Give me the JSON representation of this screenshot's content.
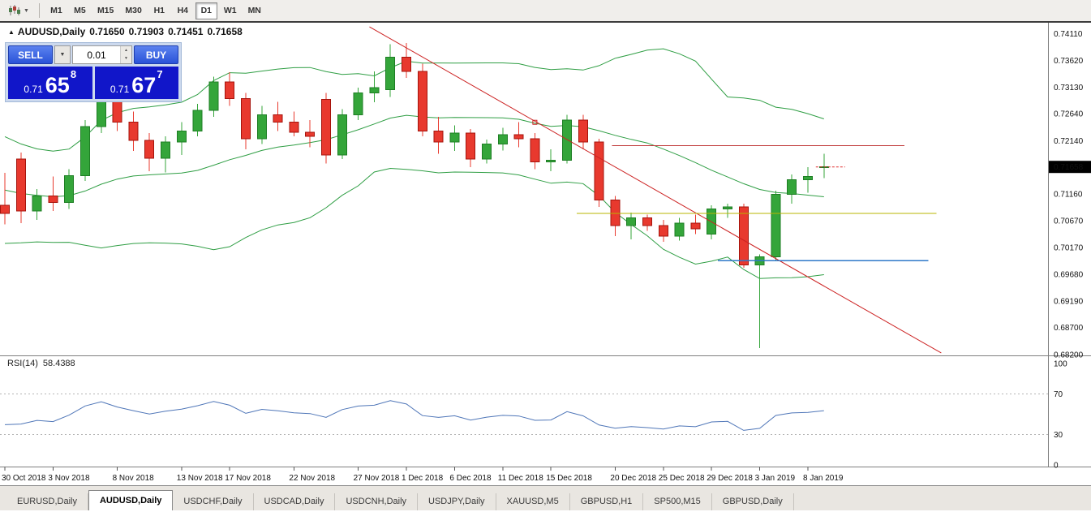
{
  "toolbar": {
    "caret_icon": "▼",
    "timeframes": [
      "M1",
      "M5",
      "M15",
      "M30",
      "H1",
      "H4",
      "D1",
      "W1",
      "MN"
    ],
    "active_timeframe": "D1"
  },
  "chart": {
    "title": {
      "marker": "▲",
      "symbol": "AUDUSD,Daily",
      "open": "0.71650",
      "high": "0.71903",
      "low": "0.71451",
      "close": "0.71658"
    },
    "trade_panel": {
      "sell_label": "SELL",
      "buy_label": "BUY",
      "volume": "0.01",
      "dropdown_icon": "▼",
      "spin_up_icon": "▲",
      "spin_down_icon": "▼",
      "sell_price": {
        "prefix": "0.71",
        "big": "65",
        "sup": "8"
      },
      "buy_price": {
        "prefix": "0.71",
        "big": "67",
        "sup": "7"
      }
    },
    "price_axis_ticks": [
      "0.74110",
      "0.73620",
      "0.73130",
      "0.72640",
      "0.72140",
      "0.71160",
      "0.70670",
      "0.70170",
      "0.69680",
      "0.69190",
      "0.68700",
      "0.68200"
    ],
    "current_price_badge": "0.71658",
    "time_labels": [
      {
        "text": "30 Oct 2018",
        "i": 0
      },
      {
        "text": "3 Nov 2018",
        "i": 3
      },
      {
        "text": "8 Nov 2018",
        "i": 7
      },
      {
        "text": "13 Nov 2018",
        "i": 11
      },
      {
        "text": "17 Nov 2018",
        "i": 14
      },
      {
        "text": "22 Nov 2018",
        "i": 18
      },
      {
        "text": "27 Nov 2018",
        "i": 22
      },
      {
        "text": "1 Dec 2018",
        "i": 25
      },
      {
        "text": "6 Dec 2018",
        "i": 28
      },
      {
        "text": "11 Dec 2018",
        "i": 31
      },
      {
        "text": "15 Dec 2018",
        "i": 34
      },
      {
        "text": "20 Dec 2018",
        "i": 38
      },
      {
        "text": "25 Dec 2018",
        "i": 41
      },
      {
        "text": "29 Dec 2018",
        "i": 44
      },
      {
        "text": "3 Jan 2019",
        "i": 47
      },
      {
        "text": "8 Jan 2019",
        "i": 50
      }
    ]
  },
  "chart_data": {
    "type": "candlestick",
    "symbol": "AUDUSD",
    "period": "Daily",
    "price_view_range": [
      0.682,
      0.743
    ],
    "candles": [
      [
        0.7095,
        0.7155,
        0.706,
        0.708
      ],
      [
        0.718,
        0.7192,
        0.7062,
        0.7085
      ],
      [
        0.7085,
        0.7125,
        0.7068,
        0.7112
      ],
      [
        0.7112,
        0.7148,
        0.7085,
        0.71
      ],
      [
        0.71,
        0.7162,
        0.7088,
        0.715
      ],
      [
        0.715,
        0.7252,
        0.714,
        0.724
      ],
      [
        0.724,
        0.7305,
        0.7228,
        0.7292
      ],
      [
        0.7292,
        0.7312,
        0.7232,
        0.7248
      ],
      [
        0.7248,
        0.7268,
        0.7195,
        0.7215
      ],
      [
        0.7215,
        0.7228,
        0.7158,
        0.7182
      ],
      [
        0.7182,
        0.7222,
        0.7156,
        0.7212
      ],
      [
        0.7212,
        0.7248,
        0.7188,
        0.7232
      ],
      [
        0.7232,
        0.7282,
        0.7222,
        0.727
      ],
      [
        0.727,
        0.7332,
        0.7258,
        0.7322
      ],
      [
        0.7322,
        0.734,
        0.7278,
        0.7292
      ],
      [
        0.7292,
        0.7302,
        0.7198,
        0.7218
      ],
      [
        0.7218,
        0.7278,
        0.7208,
        0.7262
      ],
      [
        0.7262,
        0.7286,
        0.7232,
        0.7248
      ],
      [
        0.7248,
        0.7268,
        0.7222,
        0.723
      ],
      [
        0.723,
        0.7252,
        0.7202,
        0.7222
      ],
      [
        0.729,
        0.7302,
        0.7172,
        0.7188
      ],
      [
        0.7188,
        0.7272,
        0.718,
        0.7262
      ],
      [
        0.7262,
        0.7312,
        0.7252,
        0.7302
      ],
      [
        0.7302,
        0.7342,
        0.7285,
        0.7312
      ],
      [
        0.7308,
        0.7392,
        0.7295,
        0.7368
      ],
      [
        0.7368,
        0.7394,
        0.733,
        0.7342
      ],
      [
        0.7342,
        0.7356,
        0.7222,
        0.7232
      ],
      [
        0.7232,
        0.7258,
        0.719,
        0.7212
      ],
      [
        0.7212,
        0.7242,
        0.7195,
        0.7228
      ],
      [
        0.7228,
        0.7236,
        0.7165,
        0.718
      ],
      [
        0.718,
        0.7216,
        0.7172,
        0.7208
      ],
      [
        0.7208,
        0.7238,
        0.7196,
        0.7225
      ],
      [
        0.7225,
        0.7248,
        0.7202,
        0.7218
      ],
      [
        0.7218,
        0.7228,
        0.7162,
        0.7175
      ],
      [
        0.7175,
        0.7198,
        0.7158,
        0.7178
      ],
      [
        0.7178,
        0.7262,
        0.7172,
        0.7252
      ],
      [
        0.7252,
        0.7262,
        0.7198,
        0.7212
      ],
      [
        0.7212,
        0.7218,
        0.7092,
        0.7105
      ],
      [
        0.7105,
        0.7112,
        0.7038,
        0.7058
      ],
      [
        0.7058,
        0.7082,
        0.7032,
        0.7072
      ],
      [
        0.7072,
        0.7078,
        0.7048,
        0.7058
      ],
      [
        0.7058,
        0.7068,
        0.7028,
        0.7038
      ],
      [
        0.7038,
        0.7072,
        0.703,
        0.7062
      ],
      [
        0.7062,
        0.7078,
        0.7042,
        0.7052
      ],
      [
        0.7042,
        0.7095,
        0.7032,
        0.7088
      ],
      [
        0.7088,
        0.7098,
        0.7072,
        0.7092
      ],
      [
        0.7092,
        0.7098,
        0.698,
        0.6985
      ],
      [
        0.6985,
        0.7005,
        0.6832,
        0.7
      ],
      [
        0.7,
        0.7122,
        0.6992,
        0.7115
      ],
      [
        0.7115,
        0.7152,
        0.7098,
        0.7142
      ],
      [
        0.7142,
        0.7165,
        0.7118,
        0.7148
      ],
      [
        0.7165,
        0.71903,
        0.71451,
        0.71658
      ]
    ],
    "indicators": {
      "bollinger": {
        "period": 20,
        "deviation": 2,
        "color": "#2f9e44"
      },
      "rsi": {
        "period": 14,
        "value": 58.4388,
        "color": "#4f76b8"
      }
    },
    "objects": {
      "trendline": {
        "i1": 22.7,
        "p1": 0.7424,
        "i2": 58.3,
        "p2": 0.6823,
        "color": "#cc2222"
      },
      "trendline_handle": {
        "i": 33.0,
        "p": 0.7248
      },
      "hlines": [
        {
          "name": "resistance-line-red",
          "price": 0.7205,
          "i1": 37.8,
          "i2": 56.0,
          "color": "#c03a3a"
        },
        {
          "name": "support-line-olive",
          "price": 0.708,
          "i1": 35.6,
          "i2": 58.0,
          "color": "#b8b400"
        },
        {
          "name": "support-line-blue",
          "price": 0.6993,
          "i1": 44.4,
          "i2": 57.5,
          "color": "#2e78c8"
        }
      ]
    },
    "colors": {
      "up": "#34a53a",
      "down": "#e8392e"
    }
  },
  "rsi_panel": {
    "label": "RSI(14)",
    "value": "58.4388",
    "ticks": [
      "100",
      "70",
      "30",
      "0"
    ],
    "levels": [
      70,
      30
    ]
  },
  "tabs": {
    "items": [
      "EURUSD,Daily",
      "AUDUSD,Daily",
      "USDCHF,Daily",
      "USDCAD,Daily",
      "USDCNH,Daily",
      "USDJPY,Daily",
      "XAUUSD,M5",
      "GBPUSD,H1",
      "SP500,M15",
      "GBPUSD,Daily"
    ],
    "active": "AUDUSD,Daily"
  }
}
